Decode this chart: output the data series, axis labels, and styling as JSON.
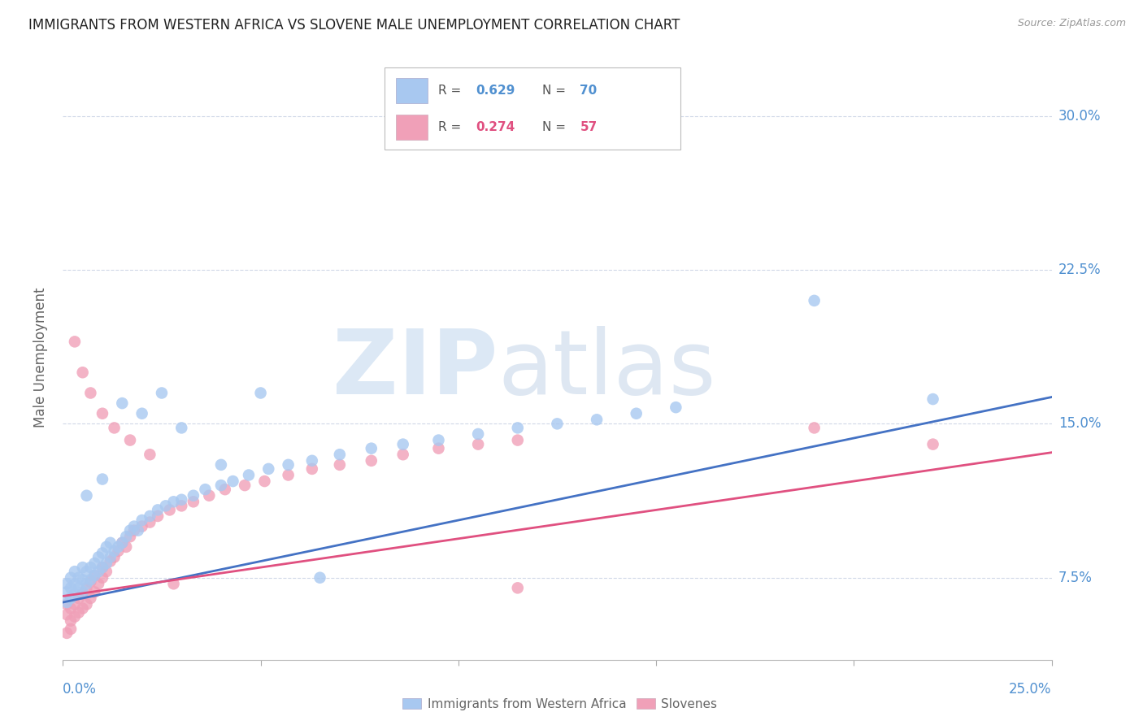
{
  "title": "IMMIGRANTS FROM WESTERN AFRICA VS SLOVENE MALE UNEMPLOYMENT CORRELATION CHART",
  "source": "Source: ZipAtlas.com",
  "ylabel": "Male Unemployment",
  "ytick_labels": [
    "7.5%",
    "15.0%",
    "22.5%",
    "30.0%"
  ],
  "ytick_values": [
    0.075,
    0.15,
    0.225,
    0.3
  ],
  "xlim": [
    0.0,
    0.25
  ],
  "ylim": [
    0.035,
    0.33
  ],
  "dot_color_blue": "#a8c8f0",
  "dot_color_pink": "#f0a0b8",
  "line_color_blue": "#4472c4",
  "line_color_pink": "#e05080",
  "bg_color": "#ffffff",
  "title_color": "#222222",
  "axis_label_color": "#5090d0",
  "grid_color": "#d0d8e8",
  "blue_line_x": [
    0.0,
    0.25
  ],
  "blue_line_y": [
    0.063,
    0.163
  ],
  "pink_line_x": [
    0.0,
    0.25
  ],
  "pink_line_y": [
    0.066,
    0.136
  ],
  "blue_scatter_x": [
    0.001,
    0.001,
    0.001,
    0.002,
    0.002,
    0.002,
    0.003,
    0.003,
    0.003,
    0.004,
    0.004,
    0.005,
    0.005,
    0.005,
    0.006,
    0.006,
    0.007,
    0.007,
    0.008,
    0.008,
    0.009,
    0.009,
    0.01,
    0.01,
    0.011,
    0.011,
    0.012,
    0.012,
    0.013,
    0.014,
    0.015,
    0.016,
    0.017,
    0.018,
    0.019,
    0.02,
    0.022,
    0.024,
    0.026,
    0.028,
    0.03,
    0.033,
    0.036,
    0.04,
    0.043,
    0.047,
    0.052,
    0.057,
    0.063,
    0.07,
    0.078,
    0.086,
    0.095,
    0.105,
    0.115,
    0.125,
    0.135,
    0.145,
    0.155,
    0.19,
    0.006,
    0.01,
    0.015,
    0.02,
    0.025,
    0.03,
    0.04,
    0.05,
    0.065,
    0.22
  ],
  "blue_scatter_y": [
    0.063,
    0.068,
    0.072,
    0.065,
    0.07,
    0.075,
    0.067,
    0.072,
    0.078,
    0.07,
    0.075,
    0.068,
    0.074,
    0.08,
    0.072,
    0.078,
    0.074,
    0.08,
    0.076,
    0.082,
    0.078,
    0.085,
    0.08,
    0.087,
    0.082,
    0.09,
    0.085,
    0.092,
    0.088,
    0.09,
    0.092,
    0.095,
    0.098,
    0.1,
    0.098,
    0.103,
    0.105,
    0.108,
    0.11,
    0.112,
    0.113,
    0.115,
    0.118,
    0.12,
    0.122,
    0.125,
    0.128,
    0.13,
    0.132,
    0.135,
    0.138,
    0.14,
    0.142,
    0.145,
    0.148,
    0.15,
    0.152,
    0.155,
    0.158,
    0.21,
    0.115,
    0.123,
    0.16,
    0.155,
    0.165,
    0.148,
    0.13,
    0.165,
    0.075,
    0.162
  ],
  "pink_scatter_x": [
    0.001,
    0.001,
    0.001,
    0.002,
    0.002,
    0.002,
    0.003,
    0.003,
    0.004,
    0.004,
    0.005,
    0.005,
    0.006,
    0.006,
    0.007,
    0.007,
    0.008,
    0.008,
    0.009,
    0.01,
    0.01,
    0.011,
    0.012,
    0.013,
    0.014,
    0.015,
    0.016,
    0.017,
    0.018,
    0.02,
    0.022,
    0.024,
    0.027,
    0.03,
    0.033,
    0.037,
    0.041,
    0.046,
    0.051,
    0.057,
    0.063,
    0.07,
    0.078,
    0.086,
    0.095,
    0.105,
    0.115,
    0.19,
    0.22,
    0.003,
    0.005,
    0.007,
    0.01,
    0.013,
    0.017,
    0.022,
    0.028,
    0.115
  ],
  "pink_scatter_y": [
    0.057,
    0.062,
    0.048,
    0.054,
    0.06,
    0.05,
    0.056,
    0.062,
    0.058,
    0.065,
    0.06,
    0.067,
    0.062,
    0.07,
    0.065,
    0.073,
    0.068,
    0.076,
    0.072,
    0.075,
    0.08,
    0.078,
    0.083,
    0.085,
    0.088,
    0.092,
    0.09,
    0.095,
    0.098,
    0.1,
    0.102,
    0.105,
    0.108,
    0.11,
    0.112,
    0.115,
    0.118,
    0.12,
    0.122,
    0.125,
    0.128,
    0.13,
    0.132,
    0.135,
    0.138,
    0.14,
    0.142,
    0.148,
    0.14,
    0.19,
    0.175,
    0.165,
    0.155,
    0.148,
    0.142,
    0.135,
    0.072,
    0.07
  ]
}
